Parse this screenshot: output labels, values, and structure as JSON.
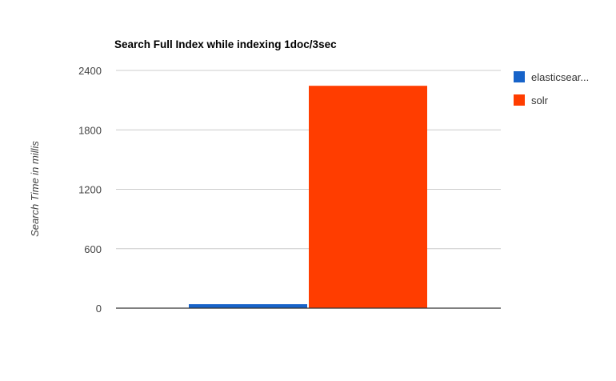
{
  "chart_data": {
    "type": "bar",
    "title": "Search Full Index while indexing 1doc/3sec",
    "xlabel": "",
    "ylabel": "Search Time in millis",
    "ylim": [
      0,
      2400
    ],
    "yticks": [
      "0",
      "600",
      "1200",
      "1800",
      "2400"
    ],
    "categories": [
      ""
    ],
    "grid": true,
    "legend_position": "right",
    "series": [
      {
        "name": "elasticsear...",
        "color": "#1763c9",
        "values": [
          40
        ]
      },
      {
        "name": "solr",
        "color": "#ff3d00",
        "values": [
          2245
        ]
      }
    ]
  }
}
